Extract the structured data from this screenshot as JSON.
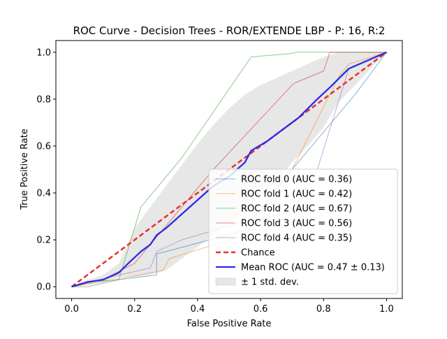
{
  "chart_data": {
    "type": "line",
    "title": "ROC Curve - Decision Trees - ROR/EXTENDE LBP - P: 16, R:2",
    "xlabel": "False Positive Rate",
    "ylabel": "True Positive Rate",
    "xlim": [
      -0.05,
      1.05
    ],
    "ylim": [
      -0.05,
      1.05
    ],
    "xticks": [
      0.0,
      0.2,
      0.4,
      0.6,
      0.8,
      1.0
    ],
    "yticks": [
      0.0,
      0.2,
      0.4,
      0.6,
      0.8,
      1.0
    ],
    "xtick_labels": [
      "0.0",
      "0.2",
      "0.4",
      "0.6",
      "0.8",
      "1.0"
    ],
    "ytick_labels": [
      "0.0",
      "0.2",
      "0.4",
      "0.6",
      "0.8",
      "1.0"
    ],
    "grid": false,
    "legend_position": "lower-right",
    "series": [
      {
        "name": "ROC fold 0 (AUC = 0.36)",
        "color": "#1f77b4",
        "style": "solid-thin",
        "points": [
          [
            0,
            0
          ],
          [
            0.05,
            0.02
          ],
          [
            0.15,
            0.03
          ],
          [
            0.27,
            0.05
          ],
          [
            0.27,
            0.14
          ],
          [
            0.3,
            0.15
          ],
          [
            0.55,
            0.24
          ],
          [
            0.65,
            0.42
          ],
          [
            0.9,
            0.82
          ],
          [
            1.0,
            1.0
          ]
        ]
      },
      {
        "name": "ROC fold 1 (AUC = 0.42)",
        "color": "#ff7f0e",
        "style": "solid-thin",
        "points": [
          [
            0,
            0
          ],
          [
            0.05,
            0.01
          ],
          [
            0.14,
            0.03
          ],
          [
            0.29,
            0.07
          ],
          [
            0.31,
            0.12
          ],
          [
            0.55,
            0.22
          ],
          [
            0.7,
            0.5
          ],
          [
            0.85,
            0.9
          ],
          [
            0.88,
            0.95
          ],
          [
            1.0,
            1.0
          ]
        ]
      },
      {
        "name": "ROC fold 2 (AUC = 0.67)",
        "color": "#2ca02c",
        "style": "solid-thin",
        "points": [
          [
            0,
            0
          ],
          [
            0.05,
            0.0
          ],
          [
            0.15,
            0.03
          ],
          [
            0.22,
            0.34
          ],
          [
            0.35,
            0.55
          ],
          [
            0.57,
            0.98
          ],
          [
            0.7,
            0.995
          ],
          [
            0.71,
            1.0
          ],
          [
            1.0,
            1.0
          ]
        ]
      },
      {
        "name": "ROC fold 3 (AUC = 0.56)",
        "color": "#d62728",
        "style": "solid-thin",
        "points": [
          [
            0,
            0
          ],
          [
            0.1,
            0.03
          ],
          [
            0.2,
            0.1
          ],
          [
            0.45,
            0.5
          ],
          [
            0.7,
            0.86
          ],
          [
            0.71,
            0.87
          ],
          [
            0.8,
            0.92
          ],
          [
            0.82,
            1.0
          ],
          [
            1.0,
            1.0
          ]
        ]
      },
      {
        "name": "ROC fold 4 (AUC = 0.35)",
        "color": "#9467bd",
        "style": "solid-thin",
        "points": [
          [
            0,
            0
          ],
          [
            0.15,
            0.05
          ],
          [
            0.25,
            0.08
          ],
          [
            0.27,
            0.15
          ],
          [
            0.35,
            0.2
          ],
          [
            0.5,
            0.26
          ],
          [
            0.7,
            0.32
          ],
          [
            0.78,
            0.5
          ],
          [
            0.88,
            0.93
          ],
          [
            1.0,
            1.0
          ]
        ]
      },
      {
        "name": "Chance",
        "color": "#e8312a",
        "style": "dashed",
        "points": [
          [
            0,
            0
          ],
          [
            1,
            1
          ]
        ]
      },
      {
        "name": "Mean ROC (AUC = 0.47 ± 0.13)",
        "color": "#2b2bea",
        "style": "solid-thick",
        "points": [
          [
            0,
            0
          ],
          [
            0.05,
            0.02
          ],
          [
            0.1,
            0.03
          ],
          [
            0.15,
            0.06
          ],
          [
            0.18,
            0.1
          ],
          [
            0.22,
            0.15
          ],
          [
            0.25,
            0.18
          ],
          [
            0.27,
            0.22
          ],
          [
            0.3,
            0.25
          ],
          [
            0.35,
            0.31
          ],
          [
            0.4,
            0.37
          ],
          [
            0.45,
            0.43
          ],
          [
            0.5,
            0.47
          ],
          [
            0.55,
            0.53
          ],
          [
            0.57,
            0.58
          ],
          [
            0.62,
            0.62
          ],
          [
            0.67,
            0.67
          ],
          [
            0.72,
            0.72
          ],
          [
            0.78,
            0.8
          ],
          [
            0.82,
            0.85
          ],
          [
            0.88,
            0.93
          ],
          [
            1.0,
            1.0
          ]
        ]
      }
    ],
    "std_band": {
      "name": "± 1 std. dev.",
      "color": "#9e9e9e",
      "opacity": 0.25,
      "x": [
        0.0,
        0.05,
        0.1,
        0.15,
        0.2,
        0.25,
        0.3,
        0.35,
        0.4,
        0.45,
        0.5,
        0.55,
        0.6,
        0.65,
        0.7,
        0.75,
        0.8,
        0.85,
        0.9,
        0.95,
        1.0
      ],
      "upper": [
        0.0,
        0.03,
        0.05,
        0.1,
        0.25,
        0.34,
        0.43,
        0.52,
        0.61,
        0.69,
        0.76,
        0.82,
        0.86,
        0.89,
        0.92,
        0.95,
        0.98,
        1.0,
        1.0,
        1.0,
        1.0
      ],
      "lower": [
        0.0,
        0.01,
        0.02,
        0.04,
        0.04,
        0.05,
        0.07,
        0.12,
        0.17,
        0.22,
        0.27,
        0.33,
        0.39,
        0.45,
        0.53,
        0.6,
        0.68,
        0.79,
        0.86,
        0.93,
        1.0
      ]
    }
  }
}
